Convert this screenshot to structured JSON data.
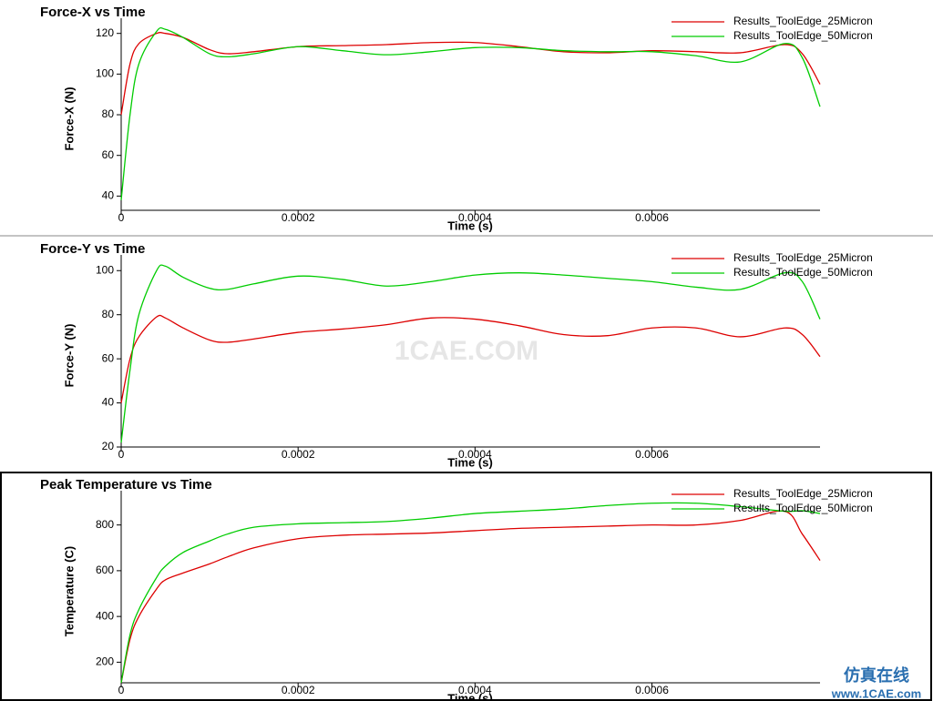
{
  "watermark": "1CAE.COM",
  "badge": {
    "title": "仿真在线",
    "url": "www.1CAE.com"
  },
  "chart_data": [
    {
      "type": "line",
      "title": "Force-X vs Time",
      "x_label": "Time (s)",
      "y_label": "Force-X (N)",
      "x": [
        0,
        1e-05,
        2e-05,
        4e-05,
        5e-05,
        7e-05,
        0.0001,
        0.00012,
        0.00015,
        0.0002,
        0.00025,
        0.0003,
        0.00035,
        0.0004,
        0.00045,
        0.0005,
        0.00055,
        0.0006,
        0.00065,
        0.0007,
        0.00075,
        0.00077,
        0.00079
      ],
      "xlim": [
        0,
        0.00079
      ],
      "xticks": [
        0,
        0.0002,
        0.0004,
        0.0006
      ],
      "ylim": [
        33,
        123
      ],
      "yticks": [
        40,
        60,
        80,
        100,
        120
      ],
      "legend": "upper right",
      "series": [
        {
          "name": "Results_ToolEdge_25Micron",
          "color": "#dd0000",
          "values": [
            80,
            105,
            115,
            120,
            120,
            118,
            112,
            110,
            111,
            113.5,
            114,
            114.5,
            115.5,
            115.5,
            113.5,
            111,
            110.5,
            111.5,
            111,
            110.5,
            114.5,
            110,
            95
          ]
        },
        {
          "name": "Results_ToolEdge_50Micron",
          "color": "#00cc00",
          "values": [
            38,
            80,
            105,
            121,
            122,
            118,
            110,
            108.5,
            110,
            113.5,
            111.5,
            109.5,
            111,
            113,
            113,
            111.5,
            111,
            111,
            109,
            106,
            115,
            108,
            84
          ]
        }
      ]
    },
    {
      "type": "line",
      "title": "Force-Y vs Time",
      "x_label": "Time (s)",
      "y_label": "Force-Y (N)",
      "x": [
        0,
        1e-05,
        2e-05,
        4e-05,
        5e-05,
        7e-05,
        0.0001,
        0.00012,
        0.00015,
        0.0002,
        0.00025,
        0.0003,
        0.00035,
        0.0004,
        0.00045,
        0.0005,
        0.00055,
        0.0006,
        0.00065,
        0.0007,
        0.00075,
        0.00077,
        0.00079
      ],
      "xlim": [
        0,
        0.00079
      ],
      "xticks": [
        0,
        0.0002,
        0.0004,
        0.0006
      ],
      "ylim": [
        20,
        103
      ],
      "yticks": [
        20,
        40,
        60,
        80,
        100
      ],
      "legend": "upper right",
      "series": [
        {
          "name": "Results_ToolEdge_25Micron",
          "color": "#dd0000",
          "values": [
            40,
            60,
            70,
            79,
            78.5,
            74,
            68.5,
            67.5,
            69,
            72,
            73.5,
            75.5,
            78.5,
            78,
            75,
            71,
            70.5,
            74,
            74,
            70,
            74,
            71,
            61
          ]
        },
        {
          "name": "Results_ToolEdge_50Micron",
          "color": "#00cc00",
          "values": [
            22,
            55,
            80,
            100,
            102,
            97,
            92,
            91.5,
            94,
            97.5,
            96,
            93,
            95,
            98,
            99,
            98,
            96.5,
            95,
            92.5,
            91.5,
            99,
            95,
            78
          ]
        }
      ]
    },
    {
      "type": "line",
      "title": "Peak Temperature vs Time",
      "x_label": "Time (s)",
      "y_label": "Temperature (C)",
      "x": [
        0,
        1e-05,
        2e-05,
        4e-05,
        5e-05,
        7e-05,
        0.0001,
        0.00012,
        0.00015,
        0.0002,
        0.00025,
        0.0003,
        0.00035,
        0.0004,
        0.00045,
        0.0005,
        0.00055,
        0.0006,
        0.00065,
        0.0007,
        0.00075,
        0.00077,
        0.00079
      ],
      "xlim": [
        0,
        0.00079
      ],
      "xticks": [
        0,
        0.0002,
        0.0004,
        0.0006
      ],
      "ylim": [
        110,
        910
      ],
      "yticks": [
        200,
        400,
        600,
        800
      ],
      "legend": "upper right",
      "series": [
        {
          "name": "Results_ToolEdge_25Micron",
          "color": "#dd0000",
          "values": [
            110,
            300,
            400,
            520,
            560,
            590,
            630,
            660,
            700,
            740,
            755,
            760,
            765,
            775,
            785,
            790,
            795,
            800,
            800,
            820,
            860,
            760,
            645
          ]
        },
        {
          "name": "Results_ToolEdge_50Micron",
          "color": "#00cc00",
          "values": [
            110,
            320,
            430,
            570,
            620,
            680,
            730,
            760,
            790,
            805,
            810,
            815,
            830,
            850,
            860,
            870,
            885,
            895,
            895,
            880,
            860,
            862,
            850
          ]
        }
      ]
    }
  ]
}
